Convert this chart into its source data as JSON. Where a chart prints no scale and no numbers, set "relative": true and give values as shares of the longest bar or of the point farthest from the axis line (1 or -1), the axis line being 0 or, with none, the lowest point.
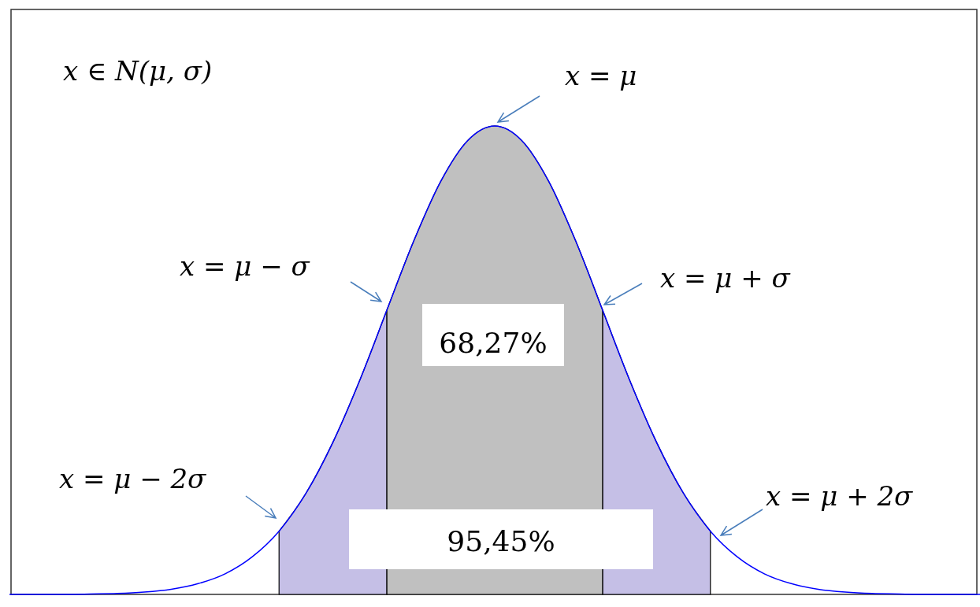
{
  "chart_data": {
    "type": "area",
    "relative": true,
    "categories": [
      null,
      null,
      null,
      null,
      null,
      null,
      null,
      null,
      null,
      null,
      null,
      null,
      null,
      null,
      null,
      null,
      null,
      null,
      null,
      null,
      null,
      null,
      null,
      null,
      null,
      null,
      null,
      null,
      null,
      null,
      null,
      null,
      null,
      null,
      null,
      null,
      null
    ],
    "series": [
      {
        "color": "#c5bfe6",
        "values": [
          null,
          null,
          null,
          null,
          null,
          null,
          null,
          null,
          null,
          null,
          0.135,
          0.216,
          0.325,
          0.458,
          0.607,
          null,
          null,
          null,
          null,
          null,
          null,
          null,
          0.607,
          0.458,
          0.325,
          0.216,
          0.135,
          null,
          null,
          null,
          null,
          null,
          null,
          null,
          null,
          null,
          null
        ]
      },
      {
        "color": "#c0c0c0",
        "values": [
          null,
          null,
          null,
          null,
          null,
          null,
          null,
          null,
          null,
          null,
          null,
          null,
          null,
          null,
          0.607,
          0.755,
          0.882,
          0.969,
          1,
          0.969,
          0.882,
          0.755,
          0.607,
          null,
          null,
          null,
          null,
          null,
          null,
          null,
          null,
          null,
          null,
          null,
          null,
          null,
          null
        ]
      },
      {
        "type": "line",
        "color": "#0000ff",
        "values": [
          0,
          0,
          0,
          0.001,
          0.002,
          0.005,
          0.011,
          0.023,
          0.044,
          0.08,
          0.135,
          0.216,
          0.325,
          0.458,
          0.607,
          0.755,
          0.882,
          0.969,
          1,
          0.969,
          0.882,
          0.755,
          0.607,
          0.458,
          0.325,
          0.216,
          0.135,
          0.08,
          0.044,
          0.023,
          0.011,
          0.005,
          0.002,
          0.001,
          0,
          0,
          0
        ]
      }
    ],
    "annotations": [
      "x ∈ N(μ, σ)",
      "x = μ",
      "x = μ − σ",
      "x = μ + σ",
      "x = μ − 2σ",
      "x = μ + 2σ",
      "68,27%",
      "95,45%"
    ]
  }
}
